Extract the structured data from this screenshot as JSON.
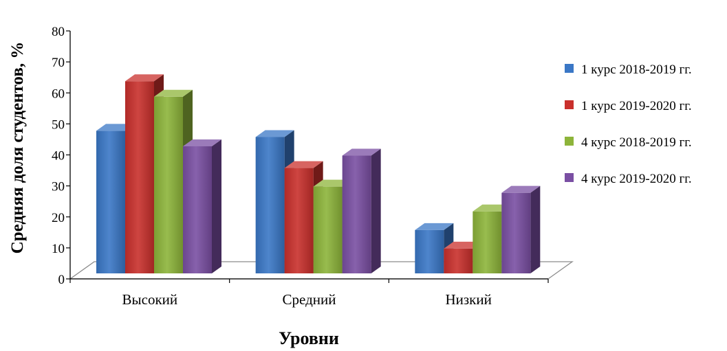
{
  "chart_data": {
    "type": "bar",
    "style": "3d-clustered-column",
    "categories": [
      "Высокий",
      "Средний",
      "Низкий"
    ],
    "series": [
      {
        "name": "1 курс 2018-2019 гг.",
        "values": [
          46,
          44,
          14
        ],
        "color": "#3a77c6"
      },
      {
        "name": "1 курс 2019-2020 гг.",
        "values": [
          62,
          34,
          8
        ],
        "color": "#c9302c"
      },
      {
        "name": "4 курс 2018-2019 гг.",
        "values": [
          57,
          28,
          20
        ],
        "color": "#8db43a"
      },
      {
        "name": "4 курс 2019-2020 гг.",
        "values": [
          41,
          38,
          26
        ],
        "color": "#7a4fa3"
      }
    ],
    "title": "",
    "xlabel": "Уровни",
    "ylabel": "Средняя доля студентов, %",
    "ylim": [
      0,
      80
    ],
    "yticks": [
      0,
      10,
      20,
      30,
      40,
      50,
      60,
      70,
      80
    ],
    "legend_position": "right",
    "grid": false
  }
}
